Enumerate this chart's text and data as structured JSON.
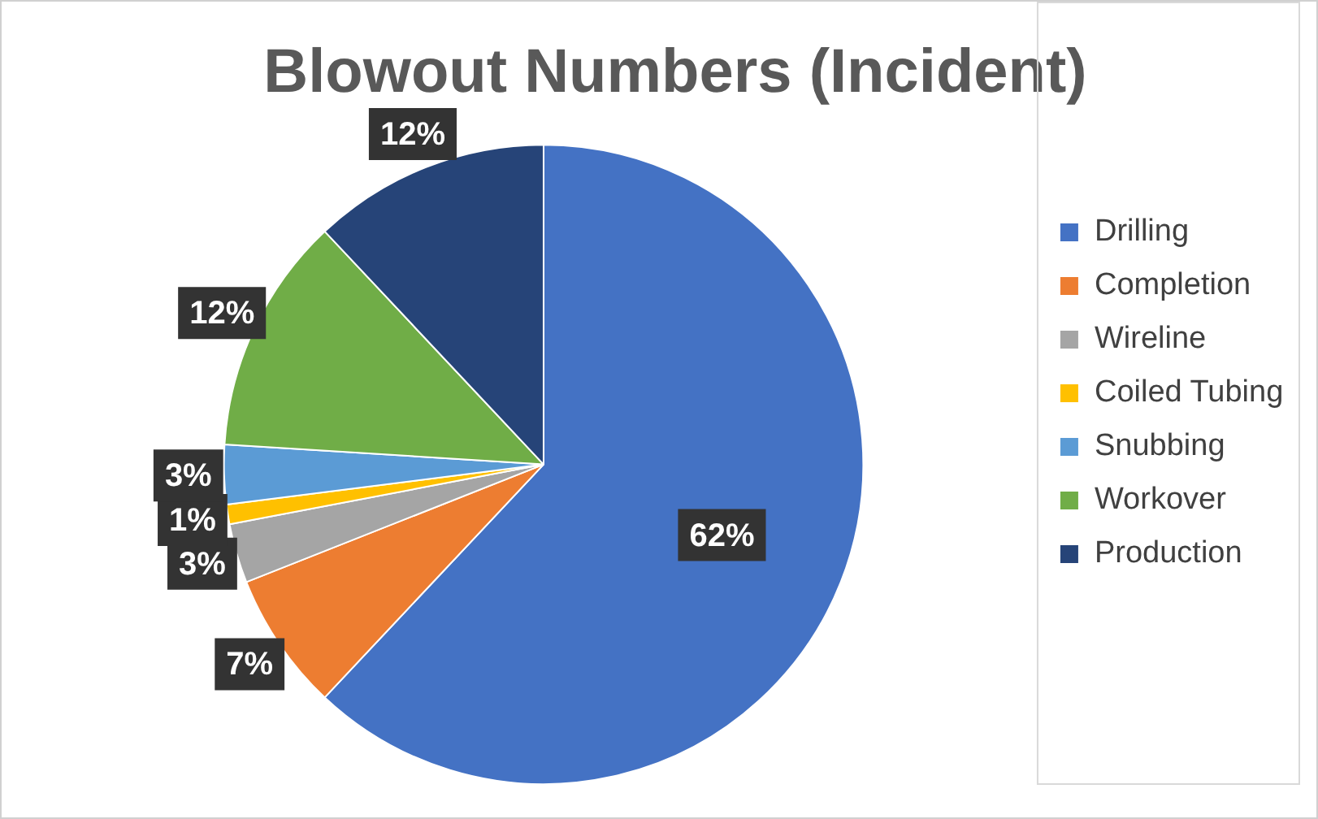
{
  "chart_data": {
    "type": "pie",
    "title": "Blowout Numbers (Incident)",
    "categories": [
      "Drilling",
      "Completion",
      "Wireline",
      "Coiled Tubing",
      "Snubbing",
      "Workover",
      "Production"
    ],
    "values": [
      62,
      7,
      3,
      1,
      3,
      12,
      12
    ],
    "value_labels": [
      "62%",
      "7%",
      "3%",
      "1%",
      "3%",
      "12%",
      "12%"
    ],
    "colors": [
      "#4472c4",
      "#ed7d31",
      "#a5a5a5",
      "#ffc000",
      "#5b9bd5",
      "#70ad47",
      "#264478"
    ],
    "legend": "right"
  }
}
